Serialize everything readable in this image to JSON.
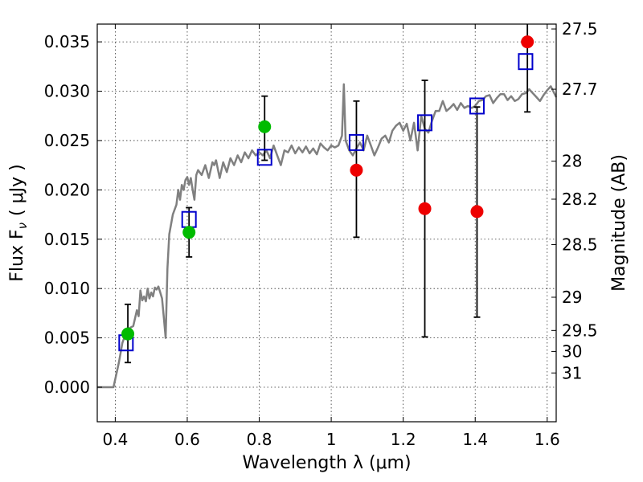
{
  "chart_data": {
    "type": "scatter",
    "xlabel": "Wavelength  λ (μm)",
    "ylabel": "Flux  F",
    "ylabel_sub": "ν",
    "ylabel_unit": "( μJy )",
    "ylabel_right": "Magnitude (AB)",
    "xlim": [
      0.35,
      1.625
    ],
    "ylim": [
      -0.0035,
      0.0368
    ],
    "grid": true,
    "x_ticks": [
      0.4,
      0.6,
      0.8,
      1.0,
      1.2,
      1.4,
      1.6
    ],
    "x_tick_labels": [
      "0.4",
      "0.6",
      "0.8",
      "1",
      "1.2",
      "1.4",
      "1.6"
    ],
    "y_ticks": [
      0.0,
      0.005,
      0.01,
      0.015,
      0.02,
      0.025,
      0.03,
      0.035
    ],
    "y_tick_labels": [
      "0.000",
      "0.005",
      "0.010",
      "0.015",
      "0.020",
      "0.025",
      "0.030",
      "0.035"
    ],
    "right_ticks": [
      {
        "label": "27.5",
        "mag": 27.5
      },
      {
        "label": "27.7",
        "mag": 27.7
      },
      {
        "label": "28",
        "mag": 28.0
      },
      {
        "label": "28.2",
        "mag": 28.2
      },
      {
        "label": "28.5",
        "mag": 28.5
      },
      {
        "label": "29",
        "mag": 29.0
      },
      {
        "label": "29.5",
        "mag": 29.5
      },
      {
        "label": "30",
        "mag": 30.0
      },
      {
        "label": "31",
        "mag": 31.0
      }
    ],
    "colors": {
      "sed": "#808080",
      "model": "#0000cc",
      "detection": "#00bb00",
      "limit": "#ee0000",
      "errorbar": "#000000"
    },
    "sed": [
      [
        0.35,
        0.0
      ],
      [
        0.395,
        0.0
      ],
      [
        0.41,
        0.0025
      ],
      [
        0.42,
        0.0045
      ],
      [
        0.43,
        0.0055
      ],
      [
        0.44,
        0.006
      ],
      [
        0.45,
        0.0062
      ],
      [
        0.46,
        0.0078
      ],
      [
        0.465,
        0.0072
      ],
      [
        0.47,
        0.0098
      ],
      [
        0.475,
        0.0088
      ],
      [
        0.48,
        0.0092
      ],
      [
        0.485,
        0.0087
      ],
      [
        0.49,
        0.01
      ],
      [
        0.495,
        0.009
      ],
      [
        0.5,
        0.0096
      ],
      [
        0.505,
        0.0092
      ],
      [
        0.51,
        0.0101
      ],
      [
        0.515,
        0.0099
      ],
      [
        0.52,
        0.0102
      ],
      [
        0.525,
        0.0096
      ],
      [
        0.53,
        0.009
      ],
      [
        0.535,
        0.007
      ],
      [
        0.54,
        0.005
      ],
      [
        0.545,
        0.012
      ],
      [
        0.55,
        0.0155
      ],
      [
        0.56,
        0.0175
      ],
      [
        0.57,
        0.0185
      ],
      [
        0.575,
        0.02
      ],
      [
        0.58,
        0.019
      ],
      [
        0.585,
        0.0205
      ],
      [
        0.59,
        0.02
      ],
      [
        0.595,
        0.021
      ],
      [
        0.6,
        0.0213
      ],
      [
        0.605,
        0.0205
      ],
      [
        0.61,
        0.0212
      ],
      [
        0.615,
        0.02
      ],
      [
        0.62,
        0.019
      ],
      [
        0.625,
        0.0215
      ],
      [
        0.63,
        0.022
      ],
      [
        0.64,
        0.0215
      ],
      [
        0.65,
        0.0225
      ],
      [
        0.66,
        0.0212
      ],
      [
        0.67,
        0.0228
      ],
      [
        0.675,
        0.0225
      ],
      [
        0.68,
        0.023
      ],
      [
        0.69,
        0.0212
      ],
      [
        0.7,
        0.0228
      ],
      [
        0.71,
        0.0218
      ],
      [
        0.72,
        0.0232
      ],
      [
        0.73,
        0.0225
      ],
      [
        0.74,
        0.0235
      ],
      [
        0.75,
        0.0228
      ],
      [
        0.76,
        0.0238
      ],
      [
        0.77,
        0.0232
      ],
      [
        0.78,
        0.024
      ],
      [
        0.79,
        0.0235
      ],
      [
        0.8,
        0.0238
      ],
      [
        0.81,
        0.0235
      ],
      [
        0.82,
        0.024
      ],
      [
        0.83,
        0.0232
      ],
      [
        0.84,
        0.0245
      ],
      [
        0.85,
        0.0235
      ],
      [
        0.86,
        0.0225
      ],
      [
        0.87,
        0.024
      ],
      [
        0.88,
        0.0238
      ],
      [
        0.89,
        0.0245
      ],
      [
        0.9,
        0.0237
      ],
      [
        0.91,
        0.0243
      ],
      [
        0.92,
        0.0238
      ],
      [
        0.93,
        0.0244
      ],
      [
        0.94,
        0.0237
      ],
      [
        0.95,
        0.0242
      ],
      [
        0.96,
        0.0236
      ],
      [
        0.97,
        0.0247
      ],
      [
        0.98,
        0.0243
      ],
      [
        0.99,
        0.024
      ],
      [
        1.0,
        0.0245
      ],
      [
        1.01,
        0.0243
      ],
      [
        1.02,
        0.0245
      ],
      [
        1.03,
        0.0255
      ],
      [
        1.035,
        0.0307
      ],
      [
        1.04,
        0.025
      ],
      [
        1.05,
        0.024
      ],
      [
        1.06,
        0.0235
      ],
      [
        1.07,
        0.0242
      ],
      [
        1.08,
        0.0248
      ],
      [
        1.09,
        0.024
      ],
      [
        1.1,
        0.0255
      ],
      [
        1.11,
        0.0245
      ],
      [
        1.12,
        0.0235
      ],
      [
        1.13,
        0.0243
      ],
      [
        1.14,
        0.0252
      ],
      [
        1.15,
        0.0255
      ],
      [
        1.16,
        0.0248
      ],
      [
        1.17,
        0.026
      ],
      [
        1.18,
        0.0265
      ],
      [
        1.19,
        0.0268
      ],
      [
        1.2,
        0.026
      ],
      [
        1.21,
        0.0267
      ],
      [
        1.22,
        0.025
      ],
      [
        1.23,
        0.0268
      ],
      [
        1.24,
        0.024
      ],
      [
        1.25,
        0.0275
      ],
      [
        1.26,
        0.0262
      ],
      [
        1.27,
        0.0258
      ],
      [
        1.28,
        0.027
      ],
      [
        1.29,
        0.028
      ],
      [
        1.3,
        0.028
      ],
      [
        1.31,
        0.029
      ],
      [
        1.32,
        0.028
      ],
      [
        1.33,
        0.0283
      ],
      [
        1.34,
        0.0287
      ],
      [
        1.35,
        0.0281
      ],
      [
        1.36,
        0.0288
      ],
      [
        1.37,
        0.0283
      ],
      [
        1.38,
        0.0285
      ],
      [
        1.39,
        0.0283
      ],
      [
        1.4,
        0.0285
      ],
      [
        1.41,
        0.029
      ],
      [
        1.42,
        0.0291
      ],
      [
        1.43,
        0.0295
      ],
      [
        1.44,
        0.0296
      ],
      [
        1.45,
        0.0288
      ],
      [
        1.46,
        0.0293
      ],
      [
        1.47,
        0.0297
      ],
      [
        1.48,
        0.0297
      ],
      [
        1.49,
        0.0291
      ],
      [
        1.5,
        0.0295
      ],
      [
        1.51,
        0.029
      ],
      [
        1.52,
        0.0292
      ],
      [
        1.53,
        0.0297
      ],
      [
        1.54,
        0.0298
      ],
      [
        1.55,
        0.0302
      ],
      [
        1.56,
        0.0298
      ],
      [
        1.57,
        0.0294
      ],
      [
        1.58,
        0.029
      ],
      [
        1.59,
        0.0296
      ],
      [
        1.6,
        0.0301
      ],
      [
        1.61,
        0.0305
      ],
      [
        1.625,
        0.0294
      ]
    ],
    "model_points": [
      {
        "x": 0.43,
        "y": 0.0045
      },
      {
        "x": 0.605,
        "y": 0.017
      },
      {
        "x": 0.815,
        "y": 0.0233
      },
      {
        "x": 1.07,
        "y": 0.0248
      },
      {
        "x": 1.26,
        "y": 0.0268
      },
      {
        "x": 1.405,
        "y": 0.0285
      },
      {
        "x": 1.54,
        "y": 0.033
      }
    ],
    "detections": [
      {
        "x": 0.435,
        "y": 0.0054,
        "yerr": [
          0.0025,
          0.0084
        ]
      },
      {
        "x": 0.605,
        "y": 0.0157,
        "yerr": [
          0.0132,
          0.0182
        ]
      },
      {
        "x": 0.815,
        "y": 0.0264,
        "yerr": [
          0.023,
          0.0295
        ]
      }
    ],
    "limits": [
      {
        "x": 1.07,
        "y": 0.022,
        "yerr": [
          0.0152,
          0.029
        ]
      },
      {
        "x": 1.26,
        "y": 0.0181,
        "yerr": [
          0.0051,
          0.0311
        ]
      },
      {
        "x": 1.405,
        "y": 0.0178,
        "yerr": [
          0.0071,
          0.0284
        ]
      },
      {
        "x": 1.545,
        "y": 0.035,
        "yerr": [
          0.0279,
          0.037
        ]
      }
    ]
  }
}
